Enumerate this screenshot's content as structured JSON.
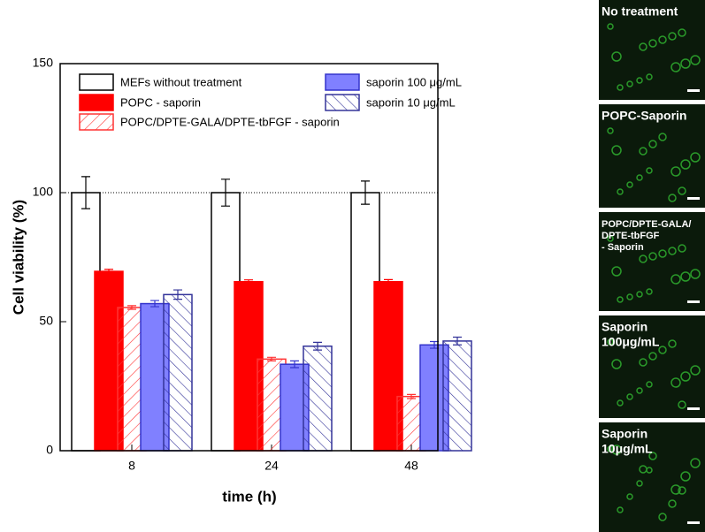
{
  "chart_data": {
    "type": "bar",
    "xlabel": "time (h)",
    "ylabel": "Cell viability (%)",
    "categories": [
      "8",
      "24",
      "48"
    ],
    "ylim": [
      0,
      150
    ],
    "yticks": [
      0,
      50,
      100,
      150
    ],
    "reference_line": 100,
    "legend": "top",
    "series": [
      {
        "name": "MEFs without treatment",
        "color": "#000000",
        "fill": "none",
        "values": [
          100,
          100,
          100
        ],
        "errors": [
          6.2,
          5.2,
          4.5
        ]
      },
      {
        "name": "POPC - saporin",
        "color": "#ff0000",
        "fill": "solid",
        "values": [
          69.5,
          65.5,
          65.5
        ],
        "errors": [
          0.8,
          0.7,
          0.8
        ]
      },
      {
        "name": "POPC/DPTE-GALA/DPTE-tbFGF - saporin",
        "color": "#ff3333",
        "fill": "hatch-forward",
        "values": [
          55.5,
          35.5,
          21
        ],
        "errors": [
          0.7,
          0.7,
          0.8
        ]
      },
      {
        "name": "saporin 100 μg/mL",
        "color": "#3333cc",
        "fill": "solid-light",
        "values": [
          57,
          33.5,
          41
        ],
        "errors": [
          1.2,
          1.3,
          1.3
        ]
      },
      {
        "name": "saporin 10 μg/mL",
        "color": "#333399",
        "fill": "hatch-back",
        "values": [
          60.5,
          40.5,
          42.5
        ],
        "errors": [
          1.8,
          1.5,
          1.5
        ]
      }
    ]
  },
  "panels": [
    {
      "lines": [
        "No treatment"
      ]
    },
    {
      "lines": [
        "POPC-Saporin"
      ]
    },
    {
      "lines": [
        "POPC/DPTE-GALA/",
        "DPTE-tbFGF",
        "- Saporin"
      ]
    },
    {
      "lines": [
        "Saporin",
        "100μg/mL"
      ]
    },
    {
      "lines": [
        "Saporin",
        "10μg/mL"
      ]
    }
  ]
}
